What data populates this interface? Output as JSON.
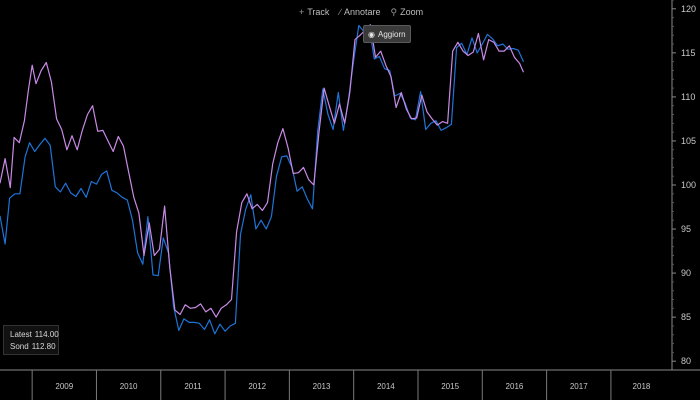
{
  "toolbar": {
    "track": "Track",
    "annotate": "Annotare",
    "zoom": "Zoom"
  },
  "update_label": "Aggiorn",
  "chart_data": {
    "type": "line",
    "ylim": [
      79,
      121
    ],
    "xlim": [
      2008.5,
      2018.95
    ],
    "y_ticks": [
      80,
      85,
      90,
      95,
      100,
      105,
      110,
      115,
      120
    ],
    "x_labels": [
      {
        "label": "2009",
        "t": 2009.0
      },
      {
        "label": "2010",
        "t": 2010.0
      },
      {
        "label": "2011",
        "t": 2011.0
      },
      {
        "label": "2012",
        "t": 2012.0
      },
      {
        "label": "2013",
        "t": 2013.0
      },
      {
        "label": "2014",
        "t": 2014.0
      },
      {
        "label": "2015",
        "t": 2015.0
      },
      {
        "label": "2016",
        "t": 2016.0
      },
      {
        "label": "2017",
        "t": 2017.0
      },
      {
        "label": "2018",
        "t": 2018.0
      }
    ],
    "grid": false,
    "legend": "bottom-left",
    "series": [
      {
        "name": "Latest",
        "color": "#1e74d8",
        "last_value": "114.00",
        "points": [
          [
            2008.5,
            96.5
          ],
          [
            2008.58,
            93.3
          ],
          [
            2008.65,
            98.5
          ],
          [
            2008.73,
            99.0
          ],
          [
            2008.81,
            99.0
          ],
          [
            2008.89,
            103.2
          ],
          [
            2008.96,
            104.8
          ],
          [
            2009.04,
            103.8
          ],
          [
            2009.12,
            104.6
          ],
          [
            2009.2,
            105.3
          ],
          [
            2009.28,
            104.5
          ],
          [
            2009.36,
            99.8
          ],
          [
            2009.44,
            99.2
          ],
          [
            2009.52,
            100.2
          ],
          [
            2009.6,
            99.1
          ],
          [
            2009.68,
            98.7
          ],
          [
            2009.76,
            99.6
          ],
          [
            2009.84,
            98.6
          ],
          [
            2009.92,
            100.4
          ],
          [
            2010.0,
            100.1
          ],
          [
            2010.08,
            101.2
          ],
          [
            2010.16,
            101.6
          ],
          [
            2010.24,
            99.4
          ],
          [
            2010.32,
            99.1
          ],
          [
            2010.4,
            98.6
          ],
          [
            2010.48,
            98.3
          ],
          [
            2010.56,
            96.0
          ],
          [
            2010.64,
            92.3
          ],
          [
            2010.72,
            91.0
          ],
          [
            2010.8,
            96.4
          ],
          [
            2010.88,
            89.8
          ],
          [
            2010.96,
            89.7
          ],
          [
            2011.04,
            94.0
          ],
          [
            2011.12,
            92.3
          ],
          [
            2011.2,
            86.2
          ],
          [
            2011.28,
            83.5
          ],
          [
            2011.36,
            84.8
          ],
          [
            2011.44,
            84.4
          ],
          [
            2011.52,
            84.4
          ],
          [
            2011.6,
            84.3
          ],
          [
            2011.68,
            83.6
          ],
          [
            2011.76,
            84.7
          ],
          [
            2011.84,
            83.1
          ],
          [
            2011.92,
            84.2
          ],
          [
            2012.0,
            83.4
          ],
          [
            2012.08,
            84.0
          ],
          [
            2012.16,
            84.3
          ],
          [
            2012.24,
            94.4
          ],
          [
            2012.32,
            97.2
          ],
          [
            2012.4,
            98.9
          ],
          [
            2012.48,
            95.0
          ],
          [
            2012.56,
            96.0
          ],
          [
            2012.64,
            95.0
          ],
          [
            2012.72,
            96.4
          ],
          [
            2012.8,
            101.0
          ],
          [
            2012.88,
            103.2
          ],
          [
            2012.96,
            103.3
          ],
          [
            2013.04,
            102.0
          ],
          [
            2013.12,
            99.3
          ],
          [
            2013.2,
            99.8
          ],
          [
            2013.28,
            98.4
          ],
          [
            2013.36,
            97.3
          ],
          [
            2013.44,
            106.1
          ],
          [
            2013.52,
            110.9
          ],
          [
            2013.6,
            108.0
          ],
          [
            2013.68,
            106.3
          ],
          [
            2013.76,
            110.5
          ],
          [
            2013.84,
            106.2
          ],
          [
            2013.92,
            109.7
          ],
          [
            2014.0,
            114.2
          ],
          [
            2014.08,
            118.1
          ],
          [
            2014.16,
            117.4
          ],
          [
            2014.24,
            118.0
          ],
          [
            2014.32,
            114.3
          ],
          [
            2014.4,
            114.6
          ],
          [
            2014.48,
            113.2
          ],
          [
            2014.56,
            113.0
          ],
          [
            2014.64,
            110.1
          ],
          [
            2014.72,
            110.4
          ],
          [
            2014.8,
            109.3
          ],
          [
            2014.88,
            107.6
          ],
          [
            2014.96,
            107.4
          ],
          [
            2015.04,
            110.6
          ],
          [
            2015.12,
            106.3
          ],
          [
            2015.2,
            107.0
          ],
          [
            2015.28,
            107.3
          ],
          [
            2015.36,
            106.2
          ],
          [
            2015.44,
            106.5
          ],
          [
            2015.52,
            106.9
          ],
          [
            2015.6,
            115.6
          ],
          [
            2015.68,
            116.1
          ],
          [
            2015.76,
            114.8
          ],
          [
            2015.84,
            116.7
          ],
          [
            2015.92,
            115.0
          ],
          [
            2016.0,
            116.0
          ],
          [
            2016.08,
            117.1
          ],
          [
            2016.16,
            116.6
          ],
          [
            2016.24,
            115.8
          ],
          [
            2016.32,
            116.0
          ],
          [
            2016.4,
            115.4
          ],
          [
            2016.48,
            115.5
          ],
          [
            2016.56,
            115.3
          ],
          [
            2016.64,
            114.0
          ]
        ]
      },
      {
        "name": "Sond",
        "color": "#c98ae6",
        "last_value": "112.80",
        "points": [
          [
            2008.5,
            100.2
          ],
          [
            2008.58,
            103.0
          ],
          [
            2008.66,
            99.7
          ],
          [
            2008.72,
            105.4
          ],
          [
            2008.8,
            104.8
          ],
          [
            2008.88,
            107.3
          ],
          [
            2008.94,
            110.7
          ],
          [
            2009.0,
            113.6
          ],
          [
            2009.06,
            111.5
          ],
          [
            2009.14,
            113.0
          ],
          [
            2009.22,
            113.9
          ],
          [
            2009.3,
            111.7
          ],
          [
            2009.38,
            107.5
          ],
          [
            2009.46,
            106.3
          ],
          [
            2009.54,
            104.0
          ],
          [
            2009.62,
            105.6
          ],
          [
            2009.7,
            104.0
          ],
          [
            2009.78,
            106.2
          ],
          [
            2009.86,
            108.0
          ],
          [
            2009.94,
            109.0
          ],
          [
            2010.02,
            106.1
          ],
          [
            2010.1,
            106.2
          ],
          [
            2010.18,
            105.0
          ],
          [
            2010.26,
            103.8
          ],
          [
            2010.34,
            105.5
          ],
          [
            2010.42,
            104.4
          ],
          [
            2010.5,
            101.5
          ],
          [
            2010.58,
            98.6
          ],
          [
            2010.66,
            96.8
          ],
          [
            2010.74,
            92.0
          ],
          [
            2010.82,
            95.7
          ],
          [
            2010.9,
            92.0
          ],
          [
            2010.98,
            92.7
          ],
          [
            2011.06,
            97.6
          ],
          [
            2011.14,
            90.6
          ],
          [
            2011.22,
            85.8
          ],
          [
            2011.3,
            85.3
          ],
          [
            2011.38,
            86.4
          ],
          [
            2011.46,
            86.0
          ],
          [
            2011.54,
            86.1
          ],
          [
            2011.62,
            86.5
          ],
          [
            2011.7,
            85.6
          ],
          [
            2011.78,
            86.0
          ],
          [
            2011.86,
            85.0
          ],
          [
            2011.94,
            86.0
          ],
          [
            2012.02,
            86.4
          ],
          [
            2012.1,
            87.0
          ],
          [
            2012.18,
            94.7
          ],
          [
            2012.26,
            98.0
          ],
          [
            2012.34,
            99.0
          ],
          [
            2012.42,
            97.3
          ],
          [
            2012.5,
            97.8
          ],
          [
            2012.58,
            97.1
          ],
          [
            2012.66,
            98.0
          ],
          [
            2012.74,
            102.4
          ],
          [
            2012.82,
            104.8
          ],
          [
            2012.9,
            106.4
          ],
          [
            2012.98,
            104.2
          ],
          [
            2013.06,
            101.3
          ],
          [
            2013.14,
            101.4
          ],
          [
            2013.22,
            102.0
          ],
          [
            2013.3,
            100.6
          ],
          [
            2013.38,
            100.0
          ],
          [
            2013.46,
            106.0
          ],
          [
            2013.54,
            111.0
          ],
          [
            2013.62,
            109.0
          ],
          [
            2013.7,
            107.0
          ],
          [
            2013.78,
            109.2
          ],
          [
            2013.86,
            107.0
          ],
          [
            2013.94,
            110.5
          ],
          [
            2014.02,
            116.5
          ],
          [
            2014.1,
            117.0
          ],
          [
            2014.18,
            117.6
          ],
          [
            2014.26,
            118.2
          ],
          [
            2014.34,
            114.5
          ],
          [
            2014.42,
            115.2
          ],
          [
            2014.5,
            113.6
          ],
          [
            2014.58,
            112.3
          ],
          [
            2014.66,
            108.8
          ],
          [
            2014.74,
            110.5
          ],
          [
            2014.82,
            108.6
          ],
          [
            2014.9,
            107.5
          ],
          [
            2014.98,
            107.6
          ],
          [
            2015.06,
            110.2
          ],
          [
            2015.14,
            108.3
          ],
          [
            2015.22,
            107.5
          ],
          [
            2015.3,
            106.8
          ],
          [
            2015.38,
            107.2
          ],
          [
            2015.46,
            107.0
          ],
          [
            2015.54,
            115.2
          ],
          [
            2015.62,
            116.2
          ],
          [
            2015.7,
            115.2
          ],
          [
            2015.78,
            114.7
          ],
          [
            2015.86,
            115.1
          ],
          [
            2015.94,
            117.2
          ],
          [
            2016.02,
            114.2
          ],
          [
            2016.1,
            116.5
          ],
          [
            2016.18,
            116.2
          ],
          [
            2016.26,
            115.2
          ],
          [
            2016.34,
            115.2
          ],
          [
            2016.42,
            115.8
          ],
          [
            2016.5,
            114.5
          ],
          [
            2016.58,
            113.8
          ],
          [
            2016.64,
            112.8
          ]
        ]
      }
    ]
  }
}
